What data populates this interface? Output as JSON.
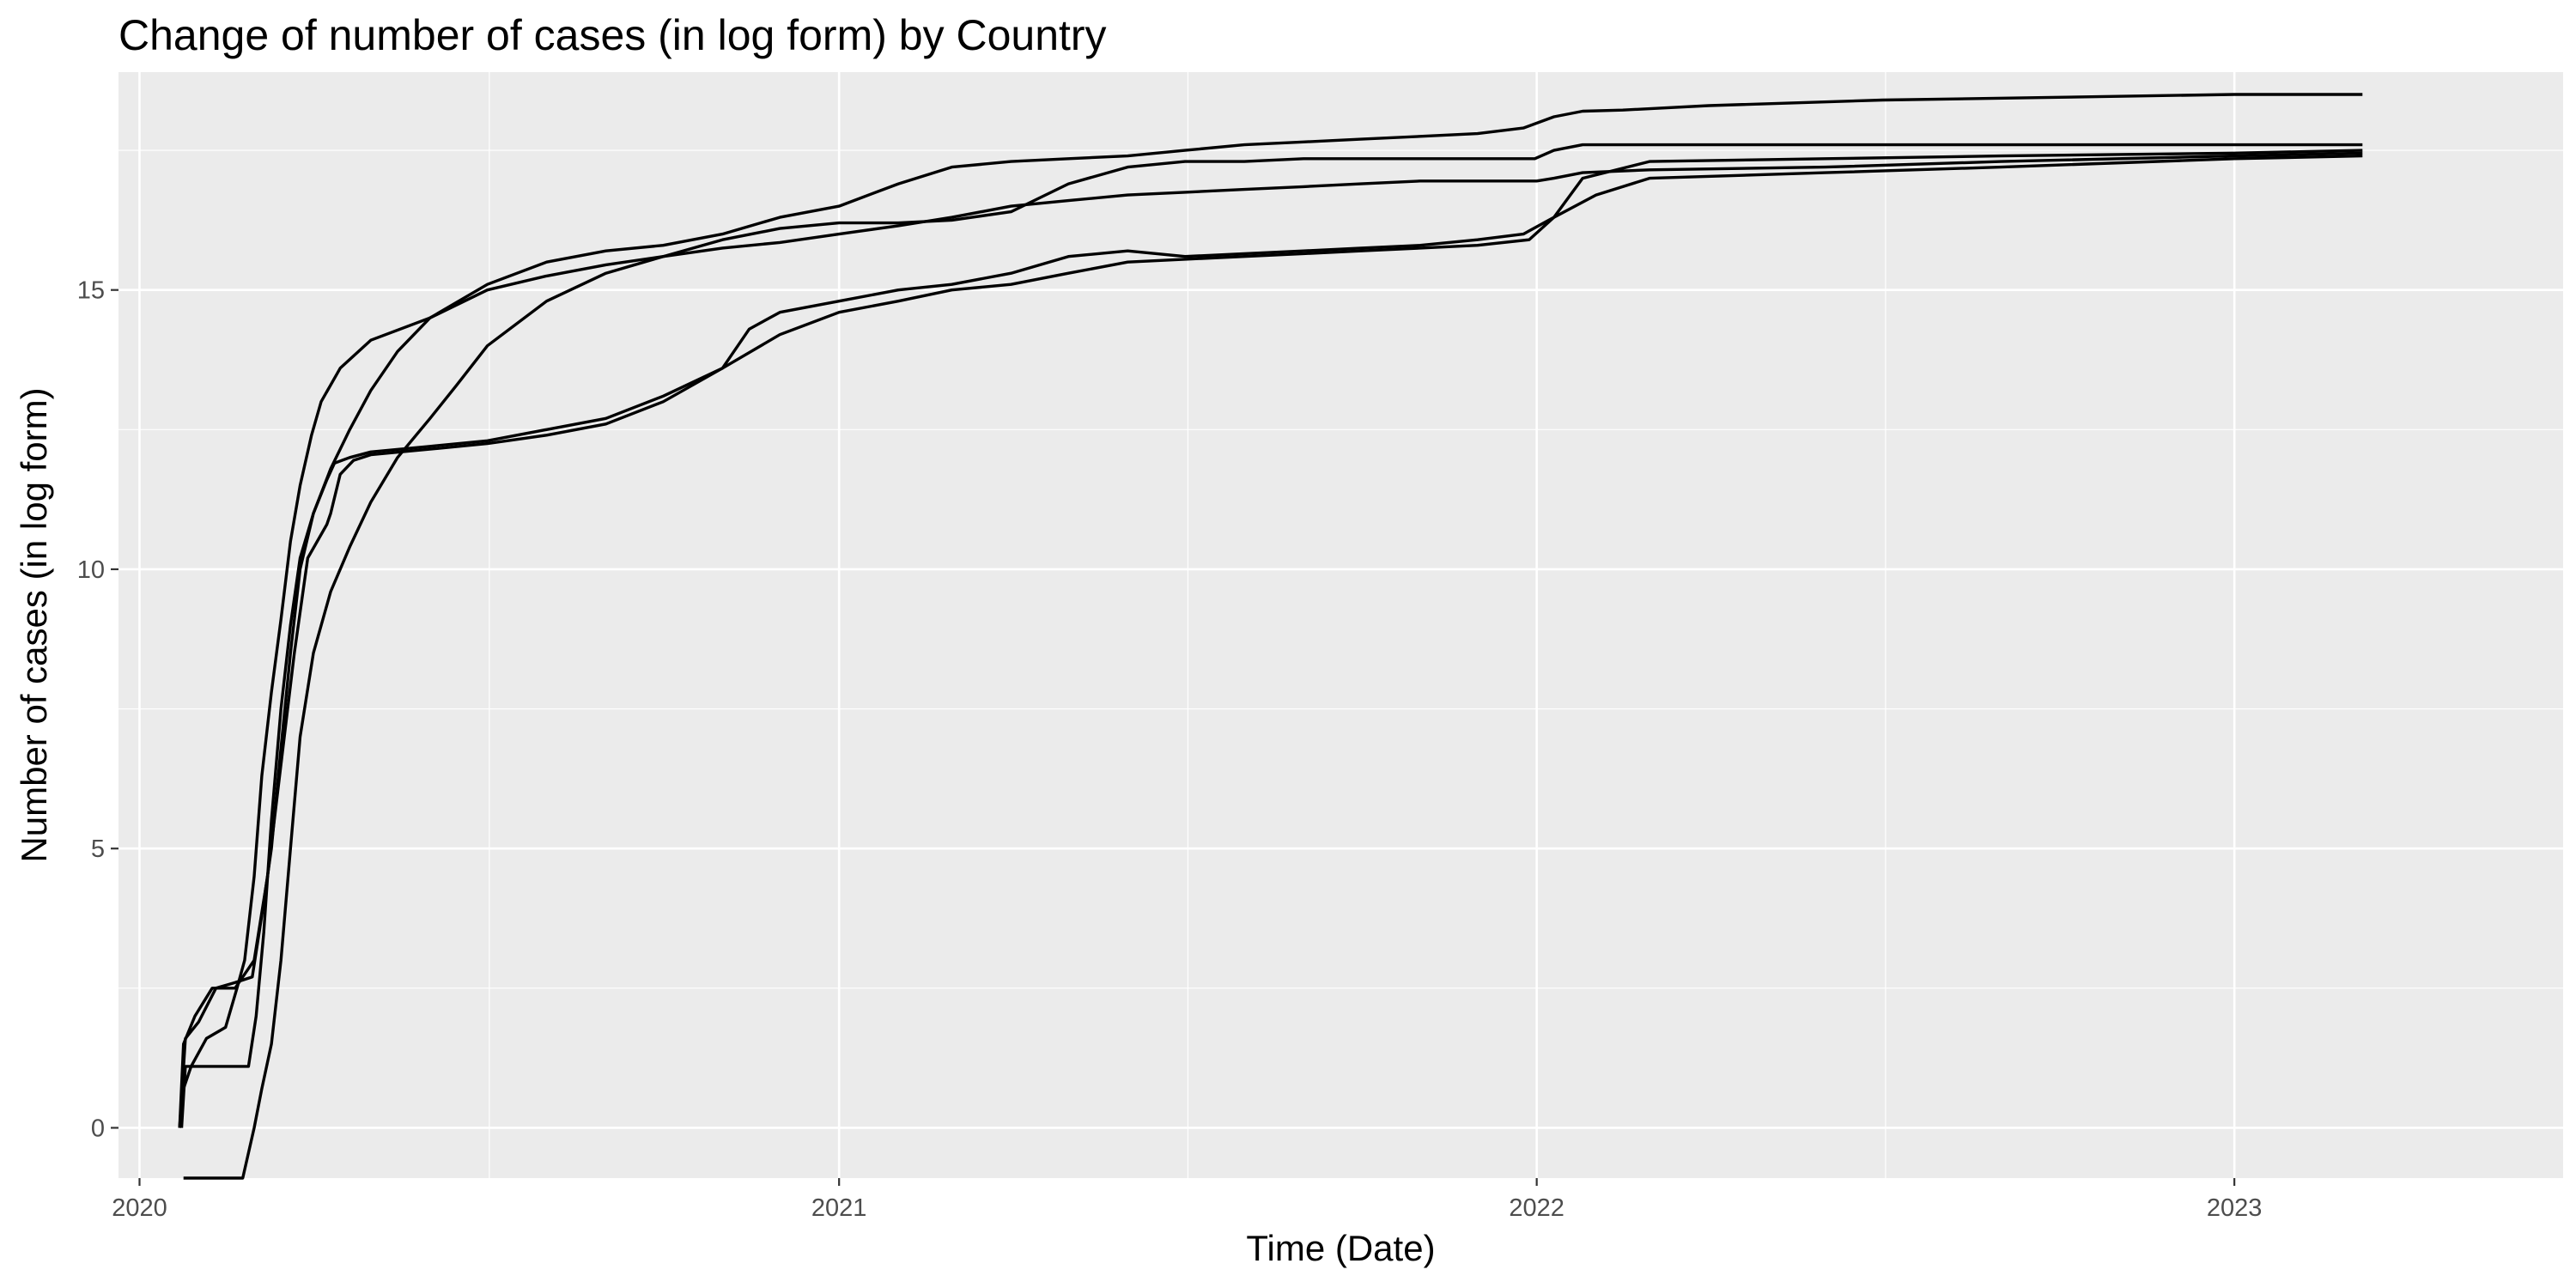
{
  "colors": {
    "panel_background": "#ebebeb",
    "grid_major": "#ffffff",
    "line": "#000000",
    "tick_text": "#4d4d4d"
  },
  "chart_data": {
    "type": "line",
    "title": "Change of number of cases (in log form) by Country",
    "xlabel": "Time (Date)",
    "ylabel": "Number of cases (in log form)",
    "x_axis_type": "date",
    "xlim": [
      "2019-12-21",
      "2023-06-22"
    ],
    "ylim": [
      -0.9,
      18.9
    ],
    "x_ticks": [
      {
        "value": "2020-01-01",
        "label": "2020"
      },
      {
        "value": "2021-01-01",
        "label": "2021"
      },
      {
        "value": "2022-01-01",
        "label": "2022"
      },
      {
        "value": "2023-01-01",
        "label": "2023"
      }
    ],
    "y_ticks": [
      {
        "value": 0,
        "label": "0"
      },
      {
        "value": 5,
        "label": "5"
      },
      {
        "value": 10,
        "label": "10"
      },
      {
        "value": 15,
        "label": "15"
      }
    ],
    "grid": true,
    "legend": "none",
    "series": [
      {
        "x": [
          "2020-01-22",
          "2020-01-24",
          "2020-01-28",
          "2020-02-05",
          "2020-02-15",
          "2020-02-21",
          "2020-02-25",
          "2020-03-01",
          "2020-03-05",
          "2020-03-10",
          "2020-03-15",
          "2020-03-20",
          "2020-03-25",
          "2020-03-31",
          "2020-04-05",
          "2020-04-15",
          "2020-05-01",
          "2020-06-01",
          "2020-07-01",
          "2020-08-01",
          "2020-09-01",
          "2020-10-01",
          "2020-11-01",
          "2020-12-01",
          "2021-01-01",
          "2021-02-01",
          "2021-03-01",
          "2021-04-01",
          "2021-05-01",
          "2021-06-01",
          "2021-07-01",
          "2021-08-01",
          "2021-09-01",
          "2021-10-01",
          "2021-11-01",
          "2021-12-01",
          "2021-12-25",
          "2022-01-10",
          "2022-01-25",
          "2022-02-15",
          "2022-04-01",
          "2022-07-01",
          "2022-10-01",
          "2023-01-01",
          "2023-03-09"
        ],
        "y": [
          0,
          0.7,
          1.1,
          1.6,
          1.8,
          2.5,
          3.0,
          4.5,
          6.3,
          7.8,
          9.1,
          10.5,
          11.5,
          12.4,
          13.0,
          13.6,
          14.1,
          14.5,
          15.1,
          15.5,
          15.7,
          15.8,
          16.0,
          16.3,
          16.5,
          16.9,
          17.2,
          17.3,
          17.35,
          17.4,
          17.5,
          17.6,
          17.65,
          17.7,
          17.75,
          17.8,
          17.9,
          18.1,
          18.2,
          18.22,
          18.3,
          18.4,
          18.45,
          18.5,
          18.5
        ]
      },
      {
        "x": [
          "2020-01-22",
          "2020-01-25",
          "2020-02-01",
          "2020-02-10",
          "2020-02-20",
          "2020-02-29",
          "2020-03-05",
          "2020-03-10",
          "2020-03-15",
          "2020-03-20",
          "2020-03-25",
          "2020-04-01",
          "2020-04-08",
          "2020-04-12",
          "2020-04-20",
          "2020-05-01",
          "2020-06-01",
          "2020-07-01",
          "2020-08-01",
          "2020-09-01",
          "2020-10-01",
          "2020-11-01",
          "2020-12-01",
          "2021-01-01",
          "2021-02-01",
          "2021-03-01",
          "2021-04-01",
          "2021-05-01",
          "2021-06-01",
          "2021-07-01",
          "2021-08-01",
          "2021-09-01",
          "2021-10-01",
          "2021-11-01",
          "2021-12-01",
          "2021-12-28",
          "2022-01-10",
          "2022-01-25",
          "2022-03-01",
          "2022-06-01",
          "2022-09-01",
          "2023-01-01",
          "2023-03-09"
        ],
        "y": [
          0,
          1.6,
          1.9,
          2.5,
          2.6,
          2.7,
          3.8,
          5.0,
          6.8,
          8.5,
          10.0,
          11.0,
          11.6,
          11.9,
          12.0,
          12.1,
          12.2,
          12.3,
          12.5,
          12.7,
          13.1,
          13.6,
          14.2,
          14.6,
          14.8,
          15.0,
          15.1,
          15.3,
          15.5,
          15.55,
          15.6,
          15.65,
          15.7,
          15.75,
          15.8,
          15.9,
          16.3,
          17.0,
          17.3,
          17.35,
          17.4,
          17.45,
          17.5
        ]
      },
      {
        "x": [
          "2020-01-22",
          "2020-01-24",
          "2020-01-30",
          "2020-02-08",
          "2020-02-20",
          "2020-03-01",
          "2020-03-08",
          "2020-03-15",
          "2020-03-22",
          "2020-03-29",
          "2020-04-08",
          "2020-04-10",
          "2020-04-15",
          "2020-04-22",
          "2020-05-01",
          "2020-06-01",
          "2020-07-01",
          "2020-08-01",
          "2020-09-01",
          "2020-10-01",
          "2020-11-01",
          "2020-11-15",
          "2020-12-01",
          "2021-01-01",
          "2021-02-01",
          "2021-03-01",
          "2021-04-01",
          "2021-05-01",
          "2021-06-01",
          "2021-07-01",
          "2021-08-01",
          "2021-09-01",
          "2021-10-01",
          "2021-11-01",
          "2021-12-01",
          "2021-12-25",
          "2022-01-10",
          "2022-02-01",
          "2022-03-01",
          "2022-06-01",
          "2022-09-01",
          "2023-01-01",
          "2023-03-09"
        ],
        "y": [
          0,
          1.5,
          2.0,
          2.5,
          2.5,
          3.0,
          4.5,
          6.5,
          8.5,
          10.2,
          10.8,
          11.0,
          11.7,
          11.95,
          12.05,
          12.15,
          12.25,
          12.4,
          12.6,
          13.0,
          13.6,
          14.3,
          14.6,
          14.8,
          15.0,
          15.1,
          15.3,
          15.6,
          15.7,
          15.6,
          15.65,
          15.7,
          15.75,
          15.8,
          15.9,
          16.0,
          16.3,
          16.7,
          17.0,
          17.1,
          17.2,
          17.35,
          17.4
        ]
      },
      {
        "x": [
          "2020-01-23",
          "2020-01-25",
          "2020-02-01",
          "2020-02-10",
          "2020-02-20",
          "2020-02-27",
          "2020-03-02",
          "2020-03-06",
          "2020-03-10",
          "2020-03-15",
          "2020-03-20",
          "2020-03-25",
          "2020-04-01",
          "2020-04-10",
          "2020-04-20",
          "2020-05-01",
          "2020-05-15",
          "2020-06-01",
          "2020-07-01",
          "2020-08-01",
          "2020-09-01",
          "2020-10-01",
          "2020-11-01",
          "2020-12-01",
          "2021-01-01",
          "2021-02-01",
          "2021-03-01",
          "2021-04-01",
          "2021-05-01",
          "2021-06-01",
          "2021-07-01",
          "2021-08-01",
          "2021-09-01",
          "2021-10-01",
          "2021-11-01",
          "2021-12-01",
          "2022-01-01",
          "2022-01-10",
          "2022-01-25",
          "2022-03-01",
          "2022-06-01",
          "2022-09-01",
          "2023-01-01",
          "2023-03-09"
        ],
        "y": [
          0,
          1.1,
          1.1,
          1.1,
          1.1,
          1.1,
          2.0,
          3.5,
          5.5,
          7.5,
          9.0,
          10.2,
          11.0,
          11.8,
          12.5,
          13.2,
          13.9,
          14.5,
          15.0,
          15.25,
          15.45,
          15.6,
          15.75,
          15.85,
          16.0,
          16.15,
          16.3,
          16.5,
          16.6,
          16.7,
          16.75,
          16.8,
          16.85,
          16.9,
          16.95,
          16.95,
          16.95,
          17.0,
          17.1,
          17.15,
          17.2,
          17.3,
          17.4,
          17.45
        ]
      },
      {
        "x": [
          "2020-01-24",
          "2020-01-26",
          "2020-02-05",
          "2020-02-15",
          "2020-02-24",
          "2020-03-01",
          "2020-03-05",
          "2020-03-10",
          "2020-03-15",
          "2020-03-20",
          "2020-03-25",
          "2020-04-01",
          "2020-04-10",
          "2020-04-20",
          "2020-05-01",
          "2020-05-15",
          "2020-06-01",
          "2020-06-15",
          "2020-07-01",
          "2020-08-01",
          "2020-09-01",
          "2020-10-01",
          "2020-11-01",
          "2020-12-01",
          "2021-01-01",
          "2021-02-01",
          "2021-03-01",
          "2021-04-01",
          "2021-05-01",
          "2021-06-01",
          "2021-07-01",
          "2021-08-01",
          "2021-09-01",
          "2021-10-01",
          "2021-11-01",
          "2021-12-01",
          "2021-12-31",
          "2022-01-10",
          "2022-01-25",
          "2022-03-01",
          "2022-06-01",
          "2022-09-01",
          "2023-01-01",
          "2023-03-09"
        ],
        "y": [
          -0.9,
          -0.9,
          -0.9,
          -0.9,
          -0.9,
          0,
          0.7,
          1.5,
          3.0,
          5.0,
          7.0,
          8.5,
          9.6,
          10.4,
          11.2,
          12.0,
          12.7,
          13.3,
          14.0,
          14.8,
          15.3,
          15.6,
          15.9,
          16.1,
          16.2,
          16.2,
          16.25,
          16.4,
          16.9,
          17.2,
          17.3,
          17.3,
          17.35,
          17.35,
          17.35,
          17.35,
          17.35,
          17.5,
          17.6,
          17.6,
          17.6,
          17.6,
          17.6,
          17.6
        ]
      }
    ]
  }
}
